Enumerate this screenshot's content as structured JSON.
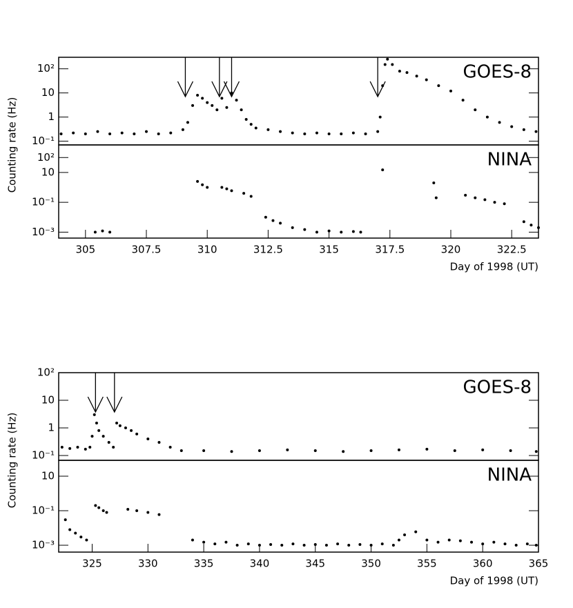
{
  "chart_data": [
    {
      "type": "scatter",
      "label": "GOES-8",
      "ylabel": "Counting rate (Hz)",
      "log": true,
      "xlim": [
        303.9,
        323.6
      ],
      "ylim": [
        0.07,
        300
      ],
      "yticks": [
        {
          "value": 0.1,
          "label": "10⁻¹"
        },
        1,
        10,
        {
          "value": 100,
          "label": "10²"
        }
      ],
      "arrows": [
        309.1,
        310.5,
        311.0,
        317.0
      ],
      "x": [
        304.0,
        304.5,
        305.0,
        305.5,
        306.0,
        306.5,
        307.0,
        307.5,
        308.0,
        308.5,
        309.0,
        309.2,
        309.4,
        309.6,
        309.8,
        310.0,
        310.2,
        310.4,
        310.6,
        310.8,
        311.0,
        311.2,
        311.4,
        311.6,
        311.8,
        312.0,
        312.5,
        313.0,
        313.5,
        314.0,
        314.5,
        315.0,
        315.5,
        316.0,
        316.5,
        317.0,
        317.1,
        317.2,
        317.3,
        317.4,
        317.6,
        317.9,
        318.2,
        318.6,
        319.0,
        319.5,
        320.0,
        320.5,
        321.0,
        321.5,
        322.0,
        322.5,
        323.0,
        323.5
      ],
      "y": [
        0.2,
        0.22,
        0.2,
        0.25,
        0.2,
        0.22,
        0.2,
        0.25,
        0.2,
        0.22,
        0.3,
        0.6,
        3,
        8,
        6,
        4,
        3,
        2,
        6,
        2.5,
        10,
        5,
        2,
        0.8,
        0.5,
        0.35,
        0.3,
        0.25,
        0.22,
        0.2,
        0.22,
        0.2,
        0.2,
        0.22,
        0.2,
        0.25,
        1,
        20,
        150,
        250,
        150,
        80,
        70,
        50,
        35,
        20,
        12,
        5,
        2,
        1,
        0.6,
        0.4,
        0.3,
        0.25
      ]
    },
    {
      "type": "scatter",
      "label": "NINA",
      "xlabel": "Day of 1998 (UT)",
      "log": true,
      "xlim": [
        303.9,
        323.6
      ],
      "ylim": [
        0.0004,
        700
      ],
      "xticks": [
        305,
        307.5,
        310,
        312.5,
        315,
        317.5,
        320,
        322.5
      ],
      "yticks": [
        {
          "value": 0.001,
          "label": "10⁻³"
        },
        {
          "value": 0.1,
          "label": "10⁻¹"
        },
        10,
        {
          "value": 100,
          "label": "10²"
        }
      ],
      "x": [
        305.4,
        305.7,
        306.0,
        309.6,
        309.8,
        310.0,
        310.6,
        310.8,
        311.0,
        311.5,
        311.8,
        312.4,
        312.7,
        313.0,
        313.5,
        314.0,
        314.5,
        315.0,
        315.5,
        316.0,
        316.3,
        317.2,
        319.3,
        319.4,
        320.6,
        321.0,
        321.4,
        321.8,
        322.2,
        323.0,
        323.3,
        323.6
      ],
      "y": [
        0.001,
        0.0012,
        0.001,
        2.5,
        1.5,
        1,
        1,
        0.8,
        0.6,
        0.4,
        0.25,
        0.01,
        0.006,
        0.004,
        0.002,
        0.0015,
        0.001,
        0.0012,
        0.001,
        0.0011,
        0.001,
        15,
        2,
        0.2,
        0.3,
        0.2,
        0.15,
        0.1,
        0.08,
        0.005,
        0.003,
        0.002
      ]
    },
    {
      "type": "scatter",
      "label": "GOES-8",
      "ylabel": "Counting rate (Hz)",
      "log": true,
      "xlim": [
        322,
        365
      ],
      "ylim": [
        0.067,
        100
      ],
      "yticks": [
        {
          "value": 0.1,
          "label": "10⁻¹"
        },
        1,
        10,
        {
          "value": 100,
          "label": "10²"
        }
      ],
      "arrows": [
        325.3,
        327.0
      ],
      "x": [
        322.3,
        323.0,
        323.7,
        324.4,
        324.8,
        325.0,
        325.2,
        325.4,
        325.6,
        326.0,
        326.5,
        326.9,
        327.2,
        327.5,
        328.0,
        328.5,
        329.0,
        330.0,
        331.0,
        332.0,
        333.0,
        335.0,
        337.5,
        340.0,
        342.5,
        345.0,
        347.5,
        350.0,
        352.5,
        355.0,
        357.5,
        360.0,
        362.5,
        364.8
      ],
      "y": [
        0.2,
        0.18,
        0.2,
        0.17,
        0.2,
        0.5,
        3,
        1.5,
        0.8,
        0.5,
        0.3,
        0.2,
        1.5,
        1.2,
        1,
        0.8,
        0.6,
        0.4,
        0.3,
        0.2,
        0.15,
        0.15,
        0.14,
        0.15,
        0.16,
        0.15,
        0.14,
        0.15,
        0.16,
        0.17,
        0.15,
        0.16,
        0.15,
        0.14
      ]
    },
    {
      "type": "scatter",
      "label": "NINA",
      "xlabel": "Day of 1998 (UT)",
      "log": true,
      "xlim": [
        322,
        365
      ],
      "ylim": [
        0.0004,
        83
      ],
      "xticks": [
        325,
        330,
        335,
        340,
        345,
        350,
        355,
        360,
        365
      ],
      "yticks": [
        {
          "value": 0.001,
          "label": "10⁻³"
        },
        {
          "value": 0.1,
          "label": "10⁻¹"
        },
        10
      ],
      "x": [
        322.6,
        323.0,
        323.5,
        324.0,
        324.5,
        325.3,
        325.6,
        326.0,
        326.3,
        328.2,
        329.0,
        330.0,
        331.0,
        334.0,
        335.0,
        336.0,
        337.0,
        338.0,
        339.0,
        340.0,
        341.0,
        342.0,
        343.0,
        344.0,
        345.0,
        346.0,
        347.0,
        348.0,
        349.0,
        350.0,
        351.0,
        352.0,
        352.5,
        353.0,
        354.0,
        355.0,
        356.0,
        357.0,
        358.0,
        359.0,
        360.0,
        361.0,
        362.0,
        363.0,
        364.0,
        364.8
      ],
      "y": [
        0.03,
        0.008,
        0.005,
        0.003,
        0.002,
        0.2,
        0.15,
        0.1,
        0.08,
        0.12,
        0.1,
        0.08,
        0.06,
        0.002,
        0.0015,
        0.0012,
        0.0015,
        0.001,
        0.0012,
        0.001,
        0.0011,
        0.001,
        0.0012,
        0.001,
        0.0011,
        0.001,
        0.0012,
        0.001,
        0.0011,
        0.001,
        0.0012,
        0.001,
        0.002,
        0.004,
        0.006,
        0.002,
        0.0015,
        0.002,
        0.0018,
        0.0015,
        0.0012,
        0.0015,
        0.0012,
        0.001,
        0.0012,
        0.001
      ]
    }
  ]
}
